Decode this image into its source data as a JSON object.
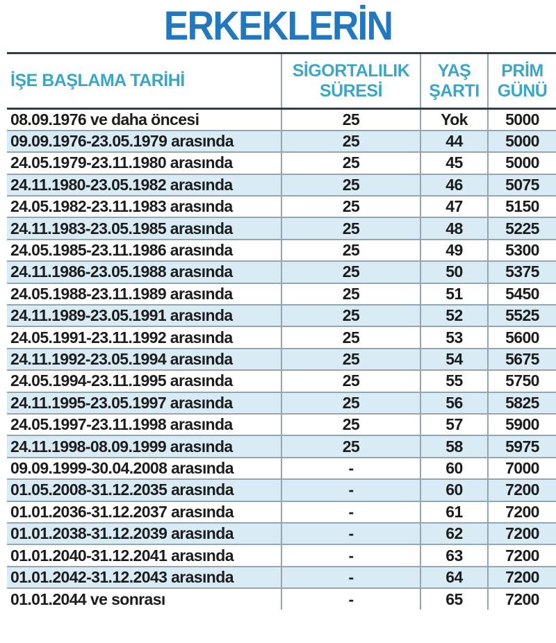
{
  "title": "ERKEKLERİN",
  "chart_data": {
    "type": "table",
    "title": "ERKEKLERİN",
    "columns": [
      "İŞE BAŞLAMA TARİHİ",
      "SİGORTALILIK SÜRESİ",
      "YAŞ ŞARTI",
      "PRİM GÜNÜ"
    ],
    "rows": [
      [
        "08.09.1976  ve daha öncesi",
        "25",
        "Yok",
        "5000"
      ],
      [
        "09.09.1976-23.05.1979 arasında",
        "25",
        "44",
        "5000"
      ],
      [
        "24.05.1979-23.11.1980 arasında",
        "25",
        "45",
        "5000"
      ],
      [
        "24.11.1980-23.05.1982 arasında",
        "25",
        "46",
        "5075"
      ],
      [
        "24.05.1982-23.11.1983 arasında",
        "25",
        "47",
        "5150"
      ],
      [
        "24.11.1983-23.05.1985 arasında",
        "25",
        "48",
        "5225"
      ],
      [
        "24.05.1985-23.11.1986 arasında",
        "25",
        "49",
        "5300"
      ],
      [
        "24.11.1986-23.05.1988 arasında",
        "25",
        "50",
        "5375"
      ],
      [
        "24.05.1988-23.11.1989 arasında",
        "25",
        "51",
        "5450"
      ],
      [
        "24.11.1989-23.05.1991 arasında",
        "25",
        "52",
        "5525"
      ],
      [
        "24.05.1991-23.11.1992 arasında",
        "25",
        "53",
        "5600"
      ],
      [
        "24.11.1992-23.05.1994 arasında",
        "25",
        "54",
        "5675"
      ],
      [
        "24.05.1994-23.11.1995 arasında",
        "25",
        "55",
        "5750"
      ],
      [
        "24.11.1995-23.05.1997 arasında",
        "25",
        "56",
        "5825"
      ],
      [
        "24.05.1997-23.11.1998 arasında",
        "25",
        "57",
        "5900"
      ],
      [
        "24.11.1998-08.09.1999 arasında",
        "25",
        "58",
        "5975"
      ],
      [
        "09.09.1999-30.04.2008 arasında",
        "-",
        "60",
        "7000"
      ],
      [
        "01.05.2008-31.12.2035 arasında",
        "-",
        "60",
        "7200"
      ],
      [
        "01.01.2036-31.12.2037 arasında",
        "-",
        "61",
        "7200"
      ],
      [
        "01.01.2038-31.12.2039 arasında",
        "-",
        "62",
        "7200"
      ],
      [
        "01.01.2040-31.12.2041 arasında",
        "-",
        "63",
        "7200"
      ],
      [
        "01.01.2042-31.12.2043 arasında",
        "-",
        "64",
        "7200"
      ],
      [
        "01.01.2044 ve sonrası",
        "-",
        "65",
        "7200"
      ]
    ]
  },
  "colors": {
    "title-color": "#2178be",
    "header-text": "#3aa6c8",
    "row-alt": "#d9ebf5",
    "text-color": "#1c1c1c",
    "line-heavy": "#24414d",
    "line-light": "#95a4ae"
  }
}
